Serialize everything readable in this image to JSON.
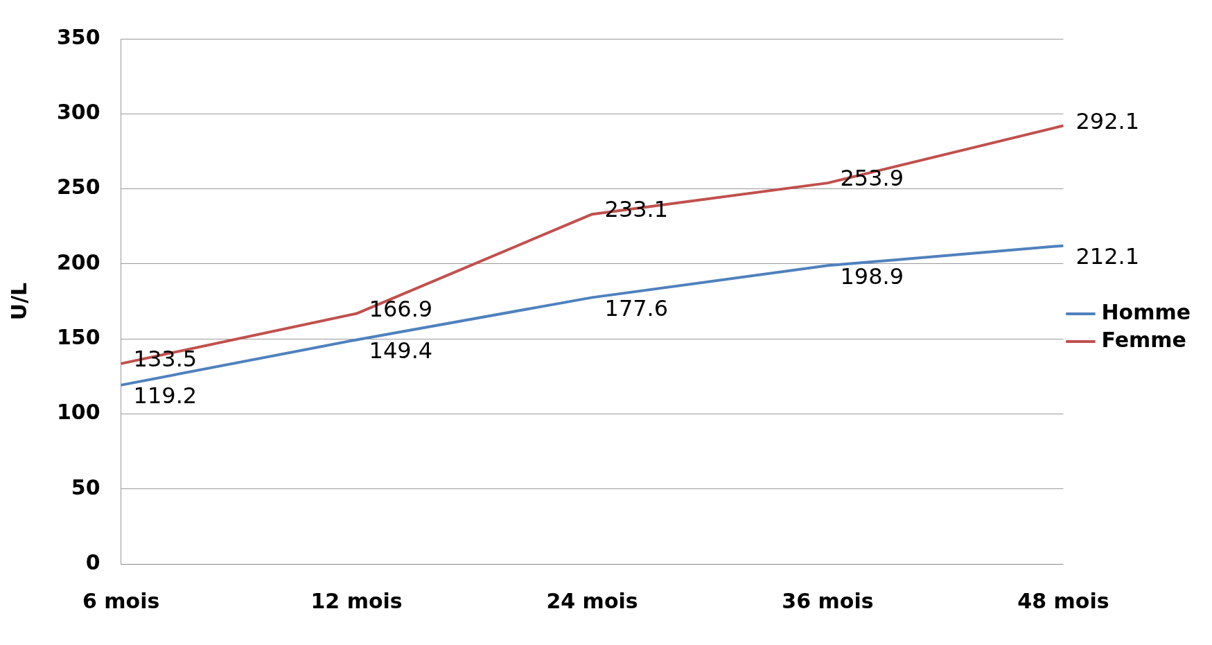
{
  "chart_data": {
    "type": "line",
    "ylabel": "U/L",
    "categories": [
      "6 mois",
      "12 mois",
      "24 mois",
      "36 mois",
      "48 mois"
    ],
    "series": [
      {
        "name": "Homme",
        "color": "#4f81bd",
        "values": [
          119.2,
          149.4,
          177.6,
          198.9,
          212.1
        ]
      },
      {
        "name": "Femme",
        "color": "#c0504d",
        "values": [
          133.5,
          166.9,
          233.1,
          253.9,
          292.1
        ]
      }
    ],
    "ylim": [
      0,
      350
    ],
    "yticks": [
      0,
      50,
      100,
      150,
      200,
      250,
      300,
      350
    ],
    "grid": "y",
    "legend": "right",
    "data_labels": true,
    "marker": "none",
    "line_style": "solid"
  }
}
